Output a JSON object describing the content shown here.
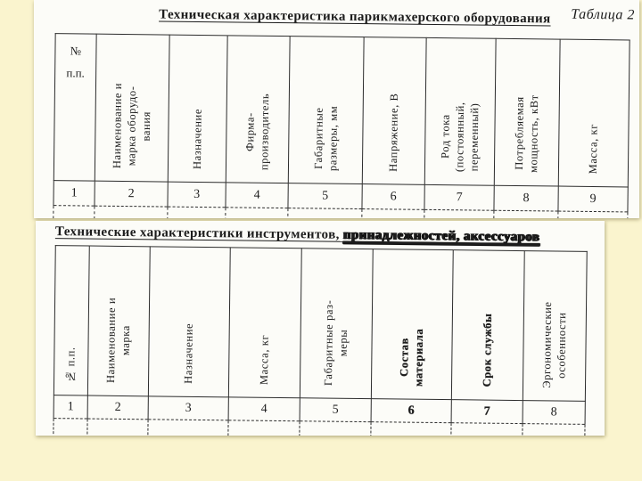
{
  "page": {
    "table_label": "Таблица 2"
  },
  "table1": {
    "title": "Техническая характеристика парикмахерского оборудования",
    "columns": [
      {
        "label": "№\nп.п.",
        "num": "1"
      },
      {
        "label": "Наименование и\nмарка оборудо-\nвания",
        "num": "2"
      },
      {
        "label": "Назначение",
        "num": "3"
      },
      {
        "label": "Фирма-\nпроизводитель",
        "num": "4"
      },
      {
        "label": "Габаритные\nразмеры, мм",
        "num": "5"
      },
      {
        "label": "Напряжение, В",
        "num": "6"
      },
      {
        "label": "Род тока\n(постоянный,\nпеременный)",
        "num": "7"
      },
      {
        "label": "Потребляемая\nмощность, кВт",
        "num": "8"
      },
      {
        "label": "Масса, кг",
        "num": "9"
      }
    ]
  },
  "table2": {
    "title_normal": "Технические характеристики инструментов, ",
    "title_smudged": "принадлежностей, аксессуаров",
    "columns": [
      {
        "label": "№ п.п.",
        "num": "1"
      },
      {
        "label": "Наименование и\nмарка",
        "num": "2"
      },
      {
        "label": "Назначение",
        "num": "3"
      },
      {
        "label": "Масса, кг",
        "num": "4"
      },
      {
        "label": "Габаритные раз-\nмеры",
        "num": "5"
      },
      {
        "label": "Состав\nматериала",
        "num": "6"
      },
      {
        "label": "Срок службы",
        "num": "7"
      },
      {
        "label": "Эргономические\nособенности",
        "num": "8"
      }
    ]
  }
}
